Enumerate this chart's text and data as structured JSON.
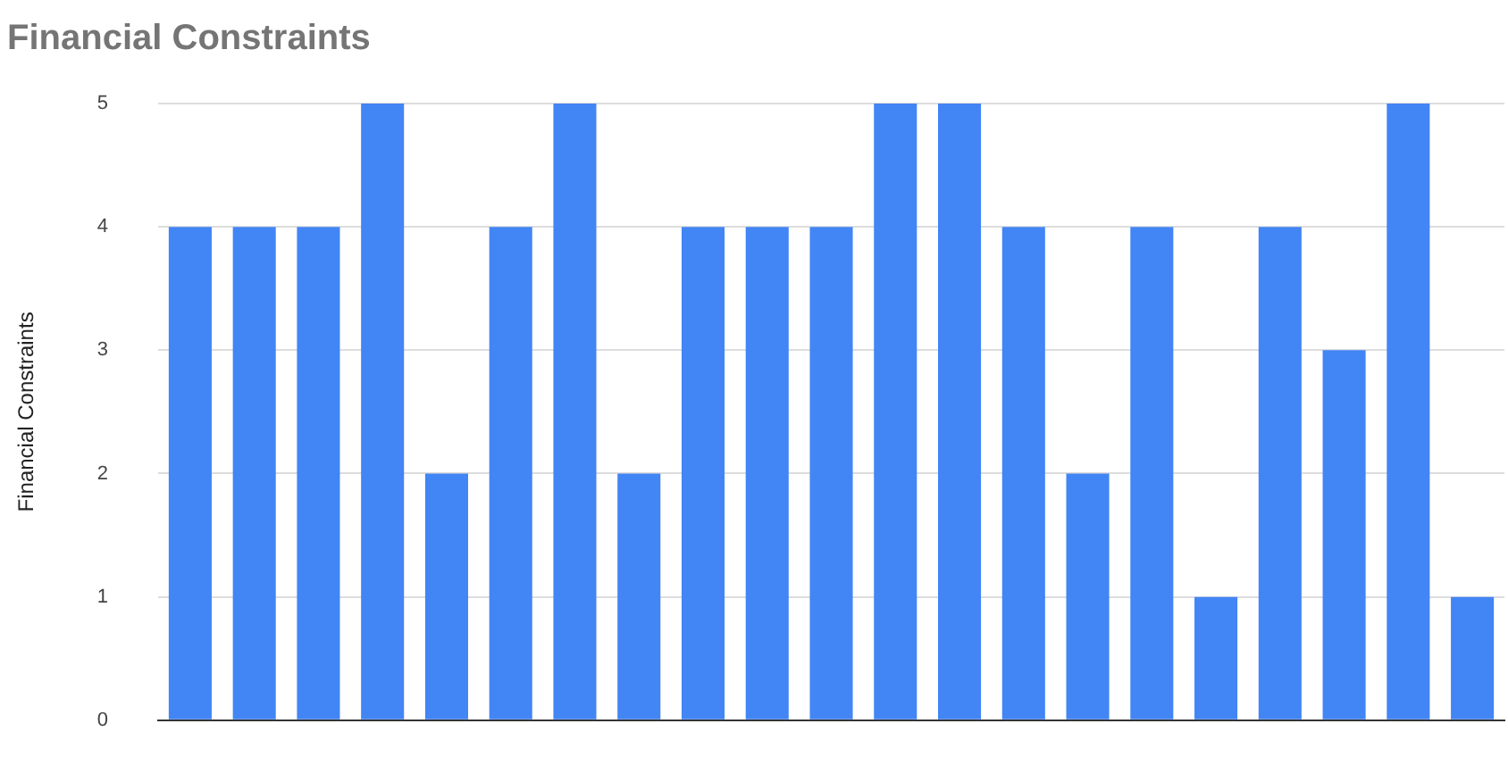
{
  "chart_data": {
    "type": "bar",
    "title": "Financial Constraints",
    "ylabel": "Financial Constraints",
    "categories": [
      null,
      null,
      null,
      null,
      null,
      null,
      null,
      null,
      null,
      null,
      null,
      null,
      null,
      null,
      null,
      null,
      null,
      null,
      null,
      null,
      null
    ],
    "values": [
      4,
      4,
      4,
      5,
      2,
      4,
      5,
      2,
      4,
      4,
      4,
      5,
      5,
      4,
      2,
      4,
      1,
      4,
      3,
      5,
      1
    ],
    "color": "#4285f4",
    "ylim": [
      0,
      5
    ],
    "yticks": [
      0,
      1,
      2,
      3,
      4,
      5
    ],
    "grid": "y",
    "legend": false
  }
}
